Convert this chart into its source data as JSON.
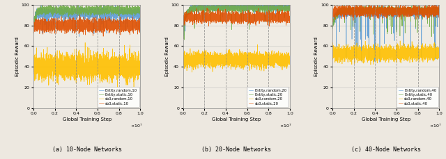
{
  "subplots": [
    {
      "title": "(a) 10-Node Networks",
      "xlabel": "Global Training Step",
      "ylabel": "Episodic Reward",
      "xlim": [
        0,
        10000000.0
      ],
      "ylim": [
        0,
        100
      ],
      "yticks": [
        0,
        20,
        40,
        60,
        80,
        100
      ],
      "xticks": [
        0,
        2000000,
        4000000,
        6000000,
        8000000,
        10000000
      ],
      "vlines": [
        2000000,
        4000000,
        6000000,
        8000000
      ],
      "series": [
        {
          "label": "Entity,random,10",
          "color": "#5b9bd5",
          "start_val": 75,
          "flat_val": 92,
          "rise_steps": 500000,
          "noise_std": 2.5,
          "spike_prob": 0.02,
          "spike_depth": 20
        },
        {
          "label": "Entity,static,10",
          "color": "#70ad47",
          "start_val": 80,
          "flat_val": 95,
          "rise_steps": 800000,
          "noise_std": 2.0,
          "spike_prob": 0.005,
          "spike_depth": 5
        },
        {
          "label": "sb3,random,10",
          "color": "#ffc000",
          "start_val": 40,
          "flat_val": 40,
          "rise_steps": 0,
          "noise_std": 6,
          "spike_prob": 0.0,
          "spike_depth": 0
        },
        {
          "label": "sb3,static,10",
          "color": "#e05000",
          "start_val": 78,
          "flat_val": 80,
          "rise_steps": 300000,
          "noise_std": 3.0,
          "spike_prob": 0.0,
          "spike_depth": 0
        }
      ]
    },
    {
      "title": "(b) 20-Node Networks",
      "xlabel": "Global Training Step",
      "ylabel": "Episodic Reward",
      "xlim": [
        0,
        10000000.0
      ],
      "ylim": [
        0,
        100
      ],
      "yticks": [
        0,
        20,
        40,
        60,
        80,
        100
      ],
      "xticks": [
        0,
        2000000,
        4000000,
        6000000,
        8000000,
        10000000
      ],
      "vlines": [
        2000000,
        4000000,
        6000000,
        8000000
      ],
      "series": [
        {
          "label": "Entity,random,20",
          "color": "#5b9bd5",
          "start_val": 80,
          "flat_val": 98,
          "rise_steps": 1500000,
          "noise_std": 1.5,
          "spike_prob": 0.008,
          "spike_depth": 15
        },
        {
          "label": "Entity,static,20",
          "color": "#70ad47",
          "start_val": 80,
          "flat_val": 97,
          "rise_steps": 1200000,
          "noise_std": 1.5,
          "spike_prob": 0.008,
          "spike_depth": 20
        },
        {
          "label": "sb3,random,20",
          "color": "#ffc000",
          "start_val": 47,
          "flat_val": 47,
          "rise_steps": 0,
          "noise_std": 3.5,
          "spike_prob": 0.005,
          "spike_depth": 10
        },
        {
          "label": "sb3,static,20",
          "color": "#e05000",
          "start_val": 82,
          "flat_val": 88,
          "rise_steps": 500000,
          "noise_std": 2.5,
          "spike_prob": 0.0,
          "spike_depth": 0
        }
      ]
    },
    {
      "title": "(c) 40-Node Networks",
      "xlabel": "Global Training Step",
      "ylabel": "Episodic Reward",
      "xlim": [
        0,
        10000000.0
      ],
      "ylim": [
        0,
        100
      ],
      "yticks": [
        0,
        20,
        40,
        60,
        80,
        100
      ],
      "xticks": [
        0,
        2000000,
        4000000,
        6000000,
        8000000,
        10000000
      ],
      "vlines": [
        2000000,
        4000000,
        6000000,
        8000000
      ],
      "series": [
        {
          "label": "Entity,random,40",
          "color": "#5b9bd5",
          "start_val": 80,
          "flat_val": 93,
          "rise_steps": 1000000,
          "noise_std": 2.0,
          "spike_prob": 0.01,
          "spike_depth": 50
        },
        {
          "label": "Entity,static,40",
          "color": "#70ad47",
          "start_val": 78,
          "flat_val": 95,
          "rise_steps": 1200000,
          "noise_std": 1.5,
          "spike_prob": 0.008,
          "spike_depth": 25
        },
        {
          "label": "sb3,random,40",
          "color": "#ffc000",
          "start_val": 58,
          "flat_val": 53,
          "rise_steps": 200000,
          "noise_std": 3.5,
          "spike_prob": 0.0,
          "spike_depth": 0
        },
        {
          "label": "sb3,static,40",
          "color": "#e05000",
          "start_val": 88,
          "flat_val": 94,
          "rise_steps": 400000,
          "noise_std": 2.5,
          "spike_prob": 0.0,
          "spike_depth": 0
        }
      ]
    }
  ],
  "figure_facecolor": "#ede8e0",
  "axes_facecolor": "#f0ece4",
  "grid_color": "#b0b0b0",
  "vline_color": "#888888",
  "seed": 12345,
  "n_points": 3000
}
